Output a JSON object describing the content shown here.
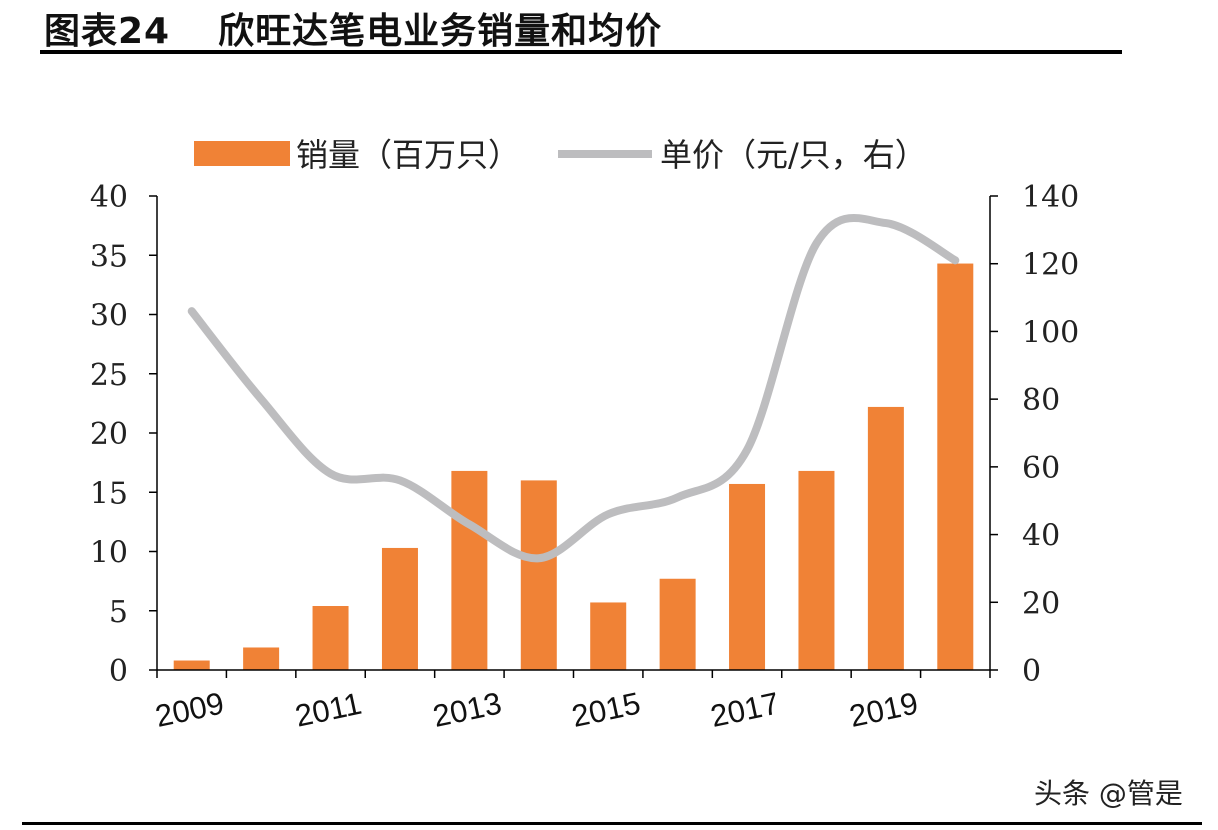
{
  "header": {
    "figure_label": "图表24",
    "title": "欣旺达笔电业务销量和均价"
  },
  "watermark": "头条 @管是",
  "colors": {
    "bar": "#F08236",
    "line": "#BDBDBF",
    "axis": "#000000"
  },
  "chart_data": {
    "type": "bar+line",
    "title": "欣旺达笔电业务销量和均价",
    "legend_position": "top",
    "x_tick_labels": [
      "2009",
      "2011",
      "2013",
      "2015",
      "2017",
      "2019"
    ],
    "x_values": [
      2009,
      2010,
      2011,
      2012,
      2013,
      2014,
      2015,
      2016,
      2017,
      2018,
      2019,
      2020
    ],
    "left_axis": {
      "ylim": [
        0,
        40
      ],
      "ticks": [
        "0",
        "5",
        "10",
        "15",
        "20",
        "25",
        "30",
        "35",
        "40"
      ]
    },
    "right_axis": {
      "ylim": [
        0,
        140
      ],
      "ticks": [
        "0",
        "20",
        "40",
        "60",
        "80",
        "100",
        "120",
        "140"
      ]
    },
    "grid": false,
    "series": [
      {
        "name": "销量（百万只）",
        "type": "bar",
        "axis": "left",
        "values": [
          0.8,
          1.9,
          5.4,
          10.3,
          16.8,
          16.0,
          5.7,
          7.7,
          15.7,
          16.8,
          22.2,
          34.3
        ]
      },
      {
        "name": "单价（元/只，右）",
        "type": "line",
        "axis": "right",
        "smooth": true,
        "values": [
          106,
          80,
          58,
          56,
          43,
          33,
          46,
          51,
          65,
          126,
          132,
          121
        ]
      }
    ]
  }
}
